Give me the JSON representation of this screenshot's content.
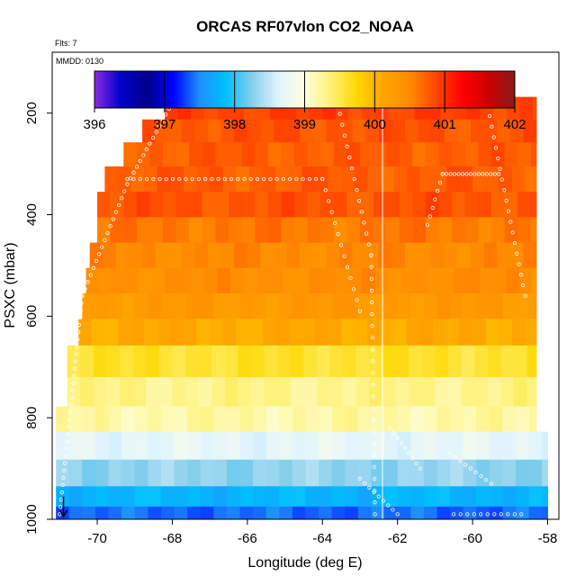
{
  "chart_data": {
    "type": "heatmap",
    "title": "ORCAS RF07vlon CO2_NOAA",
    "flights_label": "Flts: 7",
    "date_label": "MMDD: 0130",
    "xlabel": "Longitude (deg E)",
    "ylabel": "PSXC (mbar)",
    "xlim": [
      -71.2,
      -57.7
    ],
    "ylim": [
      1000,
      80
    ],
    "y_reversed": true,
    "x_ticks": [
      "-70",
      "-68",
      "-66",
      "-64",
      "-62",
      "-60",
      "-58"
    ],
    "y_ticks": [
      "200",
      "400",
      "600",
      "800",
      "1000"
    ],
    "colorbar": {
      "min": 396,
      "max": 402,
      "tick_labels": [
        "396",
        "397",
        "398",
        "399",
        "400",
        "401",
        "402"
      ],
      "colors": [
        "#8a2be2",
        "#0000cd",
        "#00008b",
        "#0000ff",
        "#1e90ff",
        "#00bfff",
        "#87ceeb",
        "#e0f4ff",
        "#ffffe0",
        "#fff176",
        "#ffd700",
        "#ffa500",
        "#ff8c00",
        "#ff4500",
        "#ff0000",
        "#cc0000",
        "#8b1a1a"
      ]
    },
    "vertical_line_lon": -62.4,
    "arrow_lon": -70.9,
    "bands": [
      {
        "p": 190,
        "lon": [
          -68.2,
          -58.3
        ],
        "value": 400.9
      },
      {
        "p": 235,
        "lon": [
          -68.8,
          -58.3
        ],
        "value": 400.8
      },
      {
        "p": 280,
        "lon": [
          -69.3,
          -58.3
        ],
        "value": 400.75
      },
      {
        "p": 330,
        "lon": [
          -69.8,
          -58.3
        ],
        "value": 400.75
      },
      {
        "p": 380,
        "lon": [
          -70.0,
          -58.3
        ],
        "value": 400.8
      },
      {
        "p": 430,
        "lon": [
          -70.0,
          -58.3
        ],
        "value": 400.6
      },
      {
        "p": 480,
        "lon": [
          -70.2,
          -58.3
        ],
        "value": 400.5
      },
      {
        "p": 530,
        "lon": [
          -70.3,
          -58.3
        ],
        "value": 400.45
      },
      {
        "p": 580,
        "lon": [
          -70.4,
          -58.3
        ],
        "value": 400.3
      },
      {
        "p": 630,
        "lon": [
          -70.5,
          -58.3
        ],
        "value": 400.1
      },
      {
        "p": 685,
        "lon": [
          -70.8,
          -58.3
        ],
        "value": 399.6
      },
      {
        "p": 755,
        "lon": [
          -70.8,
          -58.3
        ],
        "value": 399.3
      },
      {
        "p": 800,
        "lon": [
          -71.1,
          -58.3
        ],
        "value": 399.2
      },
      {
        "p": 855,
        "lon": [
          -71.1,
          -58.0
        ],
        "value": 398.7
      },
      {
        "p": 910,
        "lon": [
          -71.1,
          -58.0
        ],
        "value": 398.3
      },
      {
        "p": 960,
        "lon": [
          -71.1,
          -58.0
        ],
        "value": 397.8
      },
      {
        "p": 990,
        "lon": [
          -71.1,
          -58.0
        ],
        "value": 397.4
      }
    ]
  }
}
